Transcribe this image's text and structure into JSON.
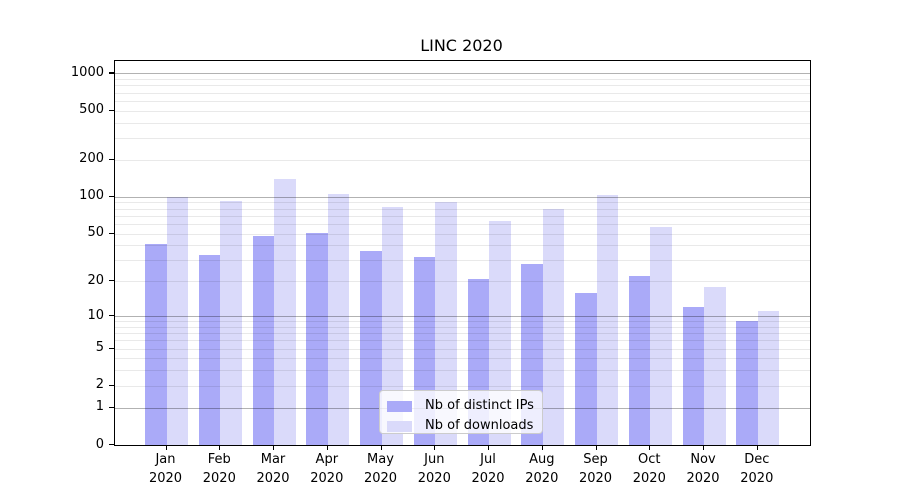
{
  "figure": {
    "title": "LINC 2020"
  },
  "chart_data": {
    "type": "bar",
    "title": "LINC 2020",
    "categories": [
      "Jan",
      "Feb",
      "Mar",
      "Apr",
      "May",
      "Jun",
      "Jul",
      "Aug",
      "Sep",
      "Oct",
      "Nov",
      "Dec"
    ],
    "category_year": "2020",
    "series": [
      {
        "name": "Nb of distinct IPs",
        "color": "#aaaaf8",
        "values": [
          41,
          33,
          48,
          51,
          36,
          32,
          21,
          28,
          16,
          22,
          12,
          9
        ]
      },
      {
        "name": "Nb of downloads",
        "color": "#dadafa",
        "values": [
          100,
          93,
          140,
          106,
          82,
          90,
          64,
          80,
          103,
          57,
          18,
          11
        ]
      }
    ],
    "yscale": "log1p",
    "ylim": [
      0,
      1260
    ],
    "yticks": [
      0,
      1,
      2,
      5,
      10,
      20,
      50,
      100,
      200,
      500,
      1000
    ],
    "major_gridlines": [
      1,
      10,
      100,
      1000
    ],
    "grid": true,
    "legend_position": "lower center",
    "xlabel": "",
    "ylabel": ""
  },
  "colors": {
    "distinct_ips": "#aaaaf8",
    "downloads": "#dadafa",
    "grid_major": "#b3b3b3",
    "grid_minor": "#ebebeb",
    "axis": "#000000",
    "legend_border": "#cccccc",
    "background": "#ffffff"
  }
}
